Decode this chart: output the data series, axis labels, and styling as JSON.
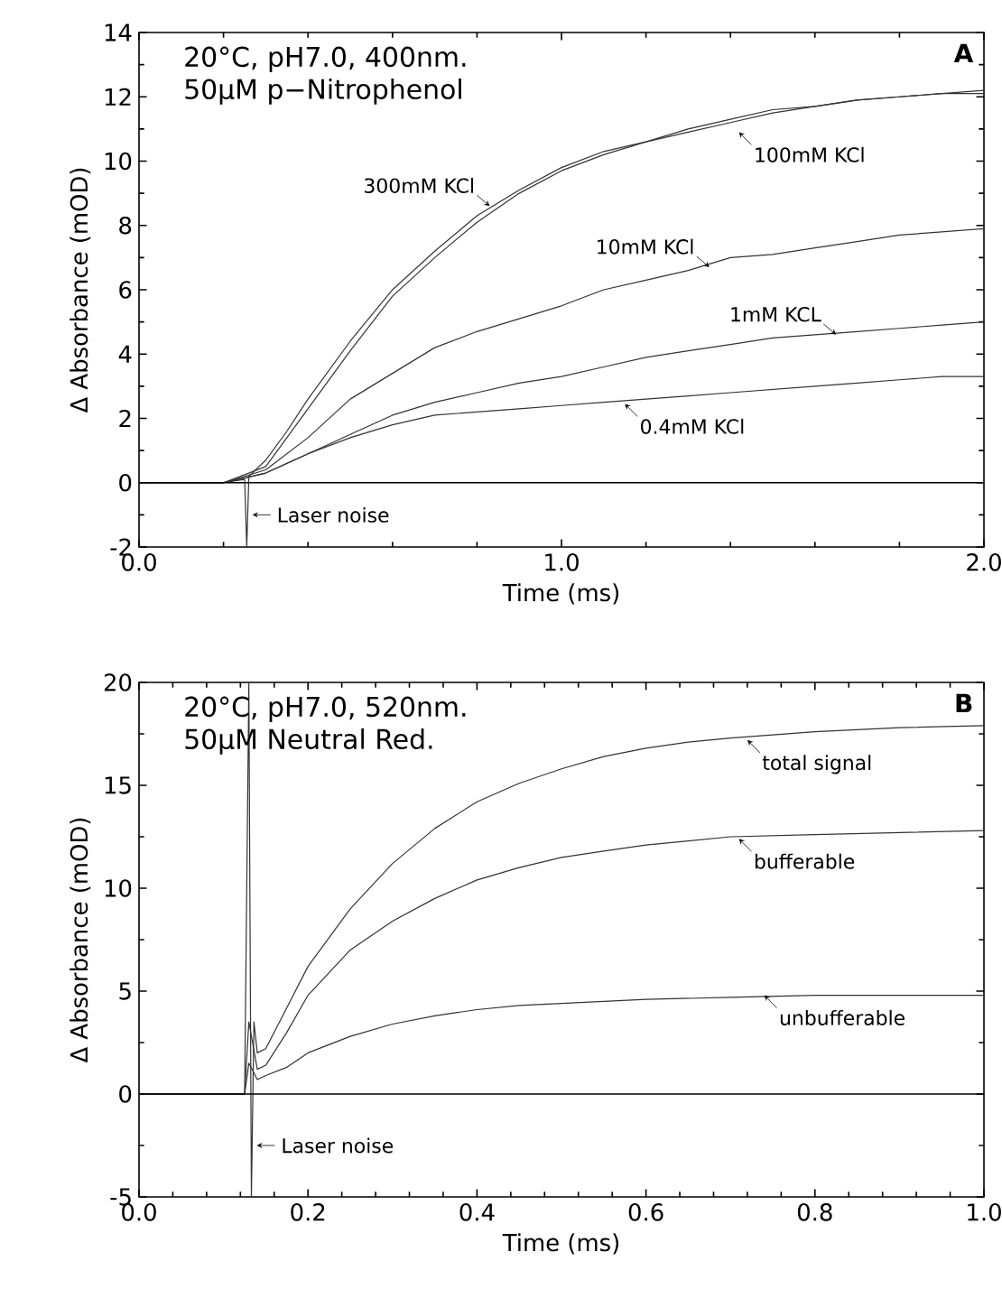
{
  "chart_data": [
    {
      "type": "line",
      "title": "20°C, pH7.0, 400nm.",
      "subtitle": "50μM p−Nitrophenol",
      "xlabel": "Time (ms)",
      "ylabel": "Δ Absorbance (mOD)",
      "xlim": [
        0,
        2
      ],
      "ylim": [
        -2,
        14
      ],
      "xticks": [
        {
          "value": 0,
          "label": "0.0"
        },
        {
          "value": 1,
          "label": "1.0"
        },
        {
          "value": 2,
          "label": "2.0"
        }
      ],
      "yticks": [
        -2,
        0,
        2,
        4,
        6,
        8,
        10,
        12,
        14
      ],
      "ref_lines": [
        {
          "axis": "y",
          "value": 0,
          "label": null
        }
      ],
      "annotations": [
        "A",
        {
          "text": "300mM KCl",
          "x": 0.83,
          "y": 8.6
        },
        {
          "text": "100mM KCl",
          "x": 1.42,
          "y": 10.9
        },
        {
          "text": "10mM KCl",
          "x": 1.35,
          "y": 6.7
        },
        {
          "text": "1mM KCL",
          "x": 1.65,
          "y": 4.6
        },
        {
          "text": "0.4mM KCl",
          "x": 1.15,
          "y": 2.45
        },
        {
          "text": "Laser noise",
          "x": 0.26,
          "y": -1
        }
      ],
      "series": [
        {
          "color": "#333333",
          "x": [
            0,
            0.1,
            0.2,
            0.25,
            0.255,
            0.26,
            0.3,
            0.35,
            0.4,
            0.5,
            0.6,
            0.7,
            0.8,
            0.9,
            1.0,
            1.1,
            1.2,
            1.3,
            1.4,
            1.5,
            1.6,
            1.7,
            1.8,
            1.9,
            2.0
          ],
          "values": [
            0,
            0,
            0,
            0.1,
            -2,
            0.2,
            0.7,
            1.6,
            2.6,
            4.4,
            6.0,
            7.2,
            8.3,
            9.1,
            9.8,
            10.3,
            10.6,
            11.0,
            11.3,
            11.6,
            11.7,
            11.9,
            12.0,
            12.1,
            12.2
          ]
        },
        {
          "color": "#333333",
          "x": [
            0,
            0.1,
            0.2,
            0.3,
            0.35,
            0.4,
            0.5,
            0.6,
            0.7,
            0.8,
            0.9,
            1.0,
            1.1,
            1.2,
            1.3,
            1.4,
            1.5,
            1.6,
            1.7,
            1.8,
            1.9,
            2.0
          ],
          "values": [
            0,
            0,
            0,
            0.5,
            1.4,
            2.3,
            4.1,
            5.8,
            7.0,
            8.1,
            9.0,
            9.7,
            10.2,
            10.6,
            10.9,
            11.2,
            11.5,
            11.7,
            11.9,
            12.0,
            12.1,
            12.1
          ]
        },
        {
          "color": "#333333",
          "x": [
            0,
            0.1,
            0.2,
            0.3,
            0.4,
            0.5,
            0.6,
            0.7,
            0.8,
            0.9,
            1.0,
            1.1,
            1.2,
            1.3,
            1.4,
            1.5,
            1.6,
            1.7,
            1.8,
            1.9,
            2.0
          ],
          "values": [
            0,
            0,
            0,
            0.4,
            1.4,
            2.6,
            3.4,
            4.2,
            4.7,
            5.1,
            5.5,
            6.0,
            6.3,
            6.6,
            7.0,
            7.1,
            7.3,
            7.5,
            7.7,
            7.8,
            7.9
          ]
        },
        {
          "color": "#333333",
          "x": [
            0,
            0.1,
            0.2,
            0.3,
            0.4,
            0.5,
            0.6,
            0.7,
            0.8,
            0.9,
            1.0,
            1.1,
            1.2,
            1.3,
            1.4,
            1.5,
            1.6,
            1.7,
            1.8,
            1.9,
            2.0
          ],
          "values": [
            0,
            0,
            0,
            0.3,
            0.9,
            1.5,
            2.1,
            2.5,
            2.8,
            3.1,
            3.3,
            3.6,
            3.9,
            4.1,
            4.3,
            4.5,
            4.6,
            4.7,
            4.8,
            4.9,
            5.0
          ]
        },
        {
          "color": "#333333",
          "x": [
            0,
            0.1,
            0.2,
            0.3,
            0.4,
            0.5,
            0.6,
            0.7,
            0.8,
            0.9,
            1.0,
            1.1,
            1.2,
            1.3,
            1.4,
            1.5,
            1.6,
            1.7,
            1.8,
            1.9,
            2.0
          ],
          "values": [
            0,
            0,
            0,
            0.3,
            0.9,
            1.4,
            1.8,
            2.1,
            2.2,
            2.3,
            2.4,
            2.5,
            2.6,
            2.7,
            2.8,
            2.9,
            3.0,
            3.1,
            3.2,
            3.3,
            3.3
          ]
        }
      ]
    },
    {
      "type": "line",
      "title": "20°C, pH7.0, 520nm.",
      "subtitle": "50μM Neutral Red.",
      "xlabel": "Time (ms)",
      "ylabel": "Δ Absorbance (mOD)",
      "xlim": [
        0,
        1
      ],
      "ylim": [
        -5,
        20
      ],
      "xticks": [
        {
          "value": 0,
          "label": "0.0"
        },
        {
          "value": 0.2,
          "label": "0.2"
        },
        {
          "value": 0.4,
          "label": "0.4"
        },
        {
          "value": 0.6,
          "label": "0.6"
        },
        {
          "value": 0.8,
          "label": "0.8"
        },
        {
          "value": 1,
          "label": "1.0"
        }
      ],
      "yticks": [
        -5,
        0,
        5,
        10,
        15,
        20
      ],
      "ref_lines": [
        {
          "axis": "y",
          "value": 0,
          "label": null
        }
      ],
      "annotations": [
        "B",
        {
          "text": "total signal",
          "x": 0.72,
          "y": 17.2
        },
        {
          "text": "bufferable",
          "x": 0.71,
          "y": 12.4
        },
        {
          "text": "unbufferable",
          "x": 0.74,
          "y": 4.8
        },
        {
          "text": "Laser noise",
          "x": 0.135,
          "y": -2.5
        }
      ],
      "series": [
        {
          "color": "#333333",
          "x": [
            0,
            0.05,
            0.1,
            0.125,
            0.13,
            0.133,
            0.136,
            0.14,
            0.15,
            0.175,
            0.2,
            0.25,
            0.3,
            0.35,
            0.4,
            0.45,
            0.5,
            0.55,
            0.6,
            0.65,
            0.7,
            0.8,
            0.9,
            1.0
          ],
          "values": [
            0,
            0,
            0,
            0,
            20,
            -5,
            3.5,
            2.0,
            2.2,
            4.2,
            6.2,
            9.0,
            11.2,
            12.9,
            14.2,
            15.1,
            15.8,
            16.4,
            16.8,
            17.1,
            17.3,
            17.6,
            17.8,
            17.9
          ]
        },
        {
          "color": "#333333",
          "x": [
            0,
            0.1,
            0.125,
            0.13,
            0.14,
            0.15,
            0.175,
            0.2,
            0.25,
            0.3,
            0.35,
            0.4,
            0.45,
            0.5,
            0.55,
            0.6,
            0.65,
            0.7,
            0.8,
            0.9,
            1.0
          ],
          "values": [
            0,
            0,
            0,
            3.5,
            1.2,
            1.4,
            3.0,
            4.8,
            7.0,
            8.4,
            9.5,
            10.4,
            11.0,
            11.5,
            11.8,
            12.1,
            12.3,
            12.5,
            12.6,
            12.7,
            12.8
          ]
        },
        {
          "color": "#333333",
          "x": [
            0,
            0.1,
            0.125,
            0.13,
            0.14,
            0.15,
            0.175,
            0.2,
            0.25,
            0.3,
            0.35,
            0.4,
            0.45,
            0.5,
            0.6,
            0.7,
            0.8,
            0.9,
            1.0
          ],
          "values": [
            0,
            0,
            0,
            1.5,
            0.7,
            0.9,
            1.3,
            2.0,
            2.8,
            3.4,
            3.8,
            4.1,
            4.3,
            4.4,
            4.6,
            4.7,
            4.8,
            4.8,
            4.8
          ]
        }
      ]
    }
  ]
}
